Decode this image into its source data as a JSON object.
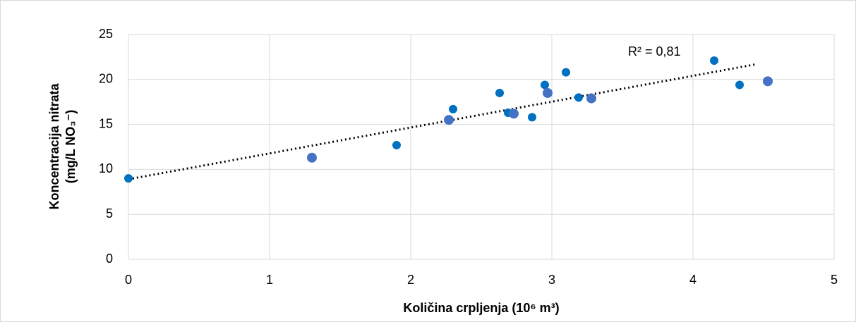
{
  "chart_data": {
    "type": "scatter",
    "xlabel": "Količina crpljenja (10⁶ m³)",
    "ylabel": [
      "Koncentracija nitrata",
      "(mg/L NO₃⁻)"
    ],
    "xlim": [
      0,
      5
    ],
    "xticks": [
      0,
      1,
      2,
      3,
      4,
      5
    ],
    "ylim": [
      0,
      25
    ],
    "yticks": [
      0,
      5,
      10,
      15,
      20,
      25
    ],
    "grid": true,
    "series": [
      {
        "color": "#0070c0",
        "x": [
          0,
          1.9,
          2.3,
          2.63,
          2.69,
          2.86,
          2.95,
          3.1,
          3.19,
          4.15,
          4.33
        ],
        "values": [
          9.0,
          12.7,
          16.7,
          18.5,
          16.3,
          15.8,
          19.4,
          20.8,
          18.0,
          22.1,
          19.4
        ]
      },
      {
        "color": "#4472c4",
        "x": [
          1.3,
          2.27,
          2.73,
          2.97,
          3.28,
          4.53
        ],
        "values": [
          11.3,
          15.5,
          16.2,
          18.5,
          17.9,
          19.8
        ]
      }
    ],
    "trendline": {
      "x": [
        0,
        4.45
      ],
      "values": [
        8.9,
        21.7
      ],
      "color": "#000000"
    },
    "annotation": "R² = 0,81"
  }
}
